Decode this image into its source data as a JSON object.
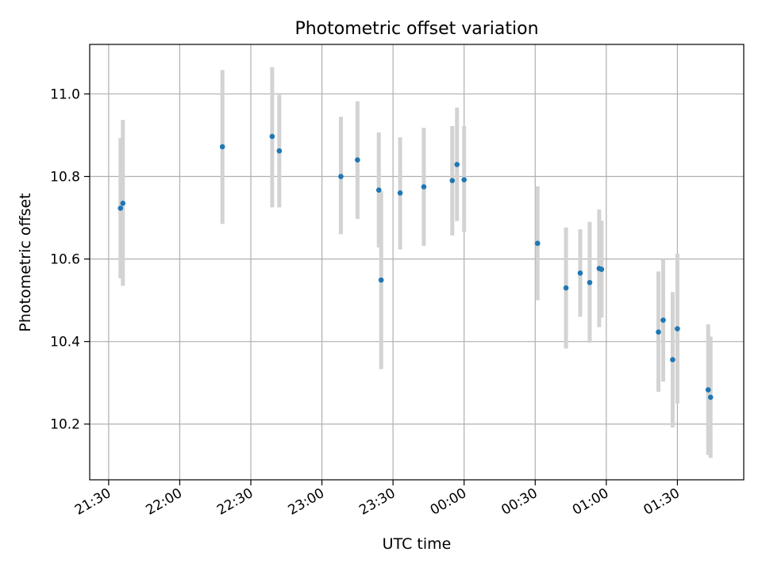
{
  "chart_data": {
    "type": "scatter",
    "title": "Photometric offset variation",
    "xlabel": "UTC time",
    "ylabel": "Photometric offset",
    "x_unit": "UTC time (HH:MM)",
    "xlim": [
      "21:22",
      "01:58"
    ],
    "ylim": [
      10.065,
      11.12
    ],
    "x_ticks": [
      "21:30",
      "22:00",
      "22:30",
      "23:00",
      "23:30",
      "00:00",
      "00:30",
      "01:00",
      "01:30"
    ],
    "y_ticks": [
      "10.2",
      "10.4",
      "10.6",
      "10.8",
      "11.0"
    ],
    "y_tick_values": [
      10.2,
      10.4,
      10.6,
      10.8,
      11.0
    ],
    "grid": true,
    "points": [
      {
        "x": "21:35",
        "y": 10.723,
        "err_low": 10.553,
        "err_high": 10.893
      },
      {
        "x": "21:36",
        "y": 10.735,
        "err_low": 10.535,
        "err_high": 10.937
      },
      {
        "x": "22:18",
        "y": 10.872,
        "err_low": 10.685,
        "err_high": 11.058
      },
      {
        "x": "22:39",
        "y": 10.897,
        "err_low": 10.725,
        "err_high": 11.065
      },
      {
        "x": "22:42",
        "y": 10.862,
        "err_low": 10.725,
        "err_high": 10.998
      },
      {
        "x": "23:08",
        "y": 10.8,
        "err_low": 10.66,
        "err_high": 10.945
      },
      {
        "x": "23:15",
        "y": 10.84,
        "err_low": 10.697,
        "err_high": 10.982
      },
      {
        "x": "23:24",
        "y": 10.767,
        "err_low": 10.628,
        "err_high": 10.907
      },
      {
        "x": "23:25",
        "y": 10.549,
        "err_low": 10.333,
        "err_high": 10.765
      },
      {
        "x": "23:33",
        "y": 10.76,
        "err_low": 10.623,
        "err_high": 10.895
      },
      {
        "x": "23:43",
        "y": 10.775,
        "err_low": 10.632,
        "err_high": 10.918
      },
      {
        "x": "23:55",
        "y": 10.79,
        "err_low": 10.657,
        "err_high": 10.922
      },
      {
        "x": "23:57",
        "y": 10.829,
        "err_low": 10.692,
        "err_high": 10.967
      },
      {
        "x": "00:00",
        "y": 10.792,
        "err_low": 10.665,
        "err_high": 10.922
      },
      {
        "x": "00:31",
        "y": 10.638,
        "err_low": 10.5,
        "err_high": 10.776
      },
      {
        "x": "00:43",
        "y": 10.53,
        "err_low": 10.383,
        "err_high": 10.676
      },
      {
        "x": "00:49",
        "y": 10.566,
        "err_low": 10.46,
        "err_high": 10.672
      },
      {
        "x": "00:53",
        "y": 10.543,
        "err_low": 10.397,
        "err_high": 10.69
      },
      {
        "x": "00:57",
        "y": 10.577,
        "err_low": 10.435,
        "err_high": 10.72
      },
      {
        "x": "00:58",
        "y": 10.575,
        "err_low": 10.458,
        "err_high": 10.693
      },
      {
        "x": "01:22",
        "y": 10.423,
        "err_low": 10.278,
        "err_high": 10.57
      },
      {
        "x": "01:24",
        "y": 10.452,
        "err_low": 10.303,
        "err_high": 10.6
      },
      {
        "x": "01:28",
        "y": 10.356,
        "err_low": 10.192,
        "err_high": 10.52
      },
      {
        "x": "01:30",
        "y": 10.431,
        "err_low": 10.25,
        "err_high": 10.613
      },
      {
        "x": "01:43",
        "y": 10.283,
        "err_low": 10.125,
        "err_high": 10.442
      },
      {
        "x": "01:44",
        "y": 10.265,
        "err_low": 10.118,
        "err_high": 10.412
      }
    ],
    "colors": {
      "marker": "#1f77b4",
      "errorbar": "#d3d3d3",
      "grid": "#b0b0b0",
      "axes": "#000000"
    }
  }
}
